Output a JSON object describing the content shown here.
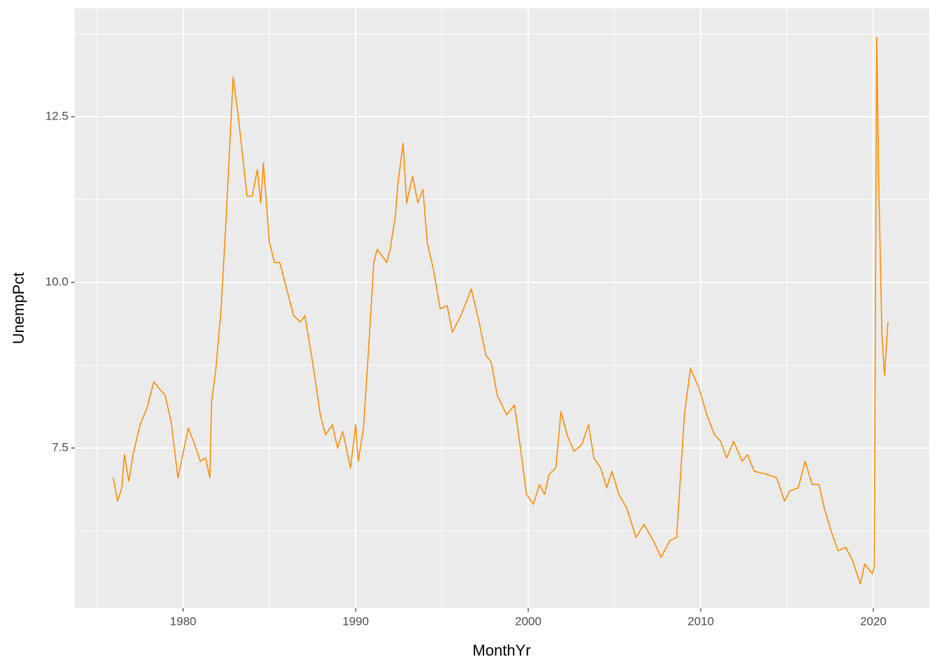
{
  "chart_data": {
    "type": "line",
    "x_label": "MonthYr",
    "y_label": "UnempPct",
    "xlim": [
      1973.72,
      2023.24
    ],
    "ylim": [
      5.084,
      14.135
    ],
    "xticks": [
      1980,
      1990,
      2000,
      2010,
      2020
    ],
    "yticks": [
      7.5,
      {
        "value": 10,
        "label": "10.0"
      },
      12.5
    ],
    "minor_xticks": [
      1975,
      1985,
      1995,
      2005,
      2015
    ],
    "minor_yticks": [
      6.25,
      8.75,
      11.25,
      13.75
    ],
    "grid": true,
    "series": [
      {
        "color": "#FF8C00",
        "x": [
          1975.95,
          1976.2,
          1976.45,
          1976.6,
          1976.85,
          1977.1,
          1977.5,
          1977.9,
          1978.3,
          1978.6,
          1978.95,
          1979.3,
          1979.7,
          1980.3,
          1980.6,
          1981.0,
          1981.3,
          1981.55,
          1981.65,
          1981.9,
          1982.2,
          1982.5,
          1982.9,
          1983.2,
          1983.7,
          1984.0,
          1984.3,
          1984.5,
          1984.65,
          1985.0,
          1985.3,
          1985.6,
          1986.1,
          1986.4,
          1986.8,
          1987.05,
          1987.5,
          1987.95,
          1988.25,
          1988.65,
          1988.95,
          1989.25,
          1989.7,
          1990.0,
          1990.15,
          1990.45,
          1990.75,
          1991.05,
          1991.25,
          1991.8,
          1992.0,
          1992.3,
          1992.45,
          1992.75,
          1992.95,
          1993.3,
          1993.6,
          1993.9,
          1994.15,
          1994.5,
          1994.9,
          1995.3,
          1995.6,
          1996.1,
          1996.7,
          1997.15,
          1997.55,
          1997.85,
          1998.2,
          1998.75,
          1999.2,
          1999.55,
          1999.9,
          2000.3,
          2000.65,
          2000.95,
          2001.2,
          2001.6,
          2001.9,
          2002.25,
          2002.65,
          2003.1,
          2003.5,
          2003.8,
          2004.2,
          2004.55,
          2004.85,
          2005.25,
          2005.7,
          2006.25,
          2006.7,
          2007.25,
          2007.7,
          2008.2,
          2008.6,
          2009.05,
          2009.4,
          2009.9,
          2010.35,
          2010.8,
          2011.15,
          2011.5,
          2011.9,
          2012.4,
          2012.7,
          2013.1,
          2013.85,
          2014.4,
          2014.85,
          2015.15,
          2015.65,
          2016.05,
          2016.45,
          2016.85,
          2017.15,
          2017.55,
          2017.95,
          2018.4,
          2018.8,
          2019.25,
          2019.5,
          2019.95,
          2020.05,
          2020.2,
          2020.3,
          2020.5,
          2020.65,
          2020.85
        ],
        "values": [
          7.05,
          6.7,
          6.9,
          7.4,
          7.0,
          7.4,
          7.85,
          8.1,
          8.5,
          8.4,
          8.3,
          7.9,
          7.05,
          7.8,
          7.6,
          7.3,
          7.35,
          7.05,
          8.2,
          8.7,
          9.6,
          11.0,
          13.1,
          12.5,
          11.3,
          11.3,
          11.7,
          11.2,
          11.8,
          10.6,
          10.3,
          10.3,
          9.8,
          9.5,
          9.4,
          9.5,
          8.8,
          8.0,
          7.7,
          7.85,
          7.5,
          7.75,
          7.2,
          7.85,
          7.3,
          7.8,
          9.0,
          10.3,
          10.5,
          10.3,
          10.5,
          11.0,
          11.5,
          12.1,
          11.2,
          11.6,
          11.2,
          11.4,
          10.6,
          10.2,
          9.6,
          9.65,
          9.25,
          9.5,
          9.9,
          9.4,
          8.9,
          8.8,
          8.3,
          8.0,
          8.15,
          7.5,
          6.8,
          6.65,
          6.95,
          6.8,
          7.1,
          7.2,
          8.05,
          7.7,
          7.45,
          7.55,
          7.85,
          7.35,
          7.2,
          6.9,
          7.15,
          6.8,
          6.6,
          6.15,
          6.35,
          6.1,
          5.85,
          6.1,
          6.15,
          8.0,
          8.7,
          8.4,
          8.0,
          7.7,
          7.6,
          7.35,
          7.6,
          7.3,
          7.4,
          7.15,
          7.1,
          7.05,
          6.7,
          6.85,
          6.9,
          7.3,
          6.95,
          6.95,
          6.6,
          6.25,
          5.95,
          6.0,
          5.8,
          5.45,
          5.75,
          5.6,
          5.7,
          13.7,
          11.7,
          9.2,
          8.6,
          9.4
        ]
      }
    ]
  }
}
